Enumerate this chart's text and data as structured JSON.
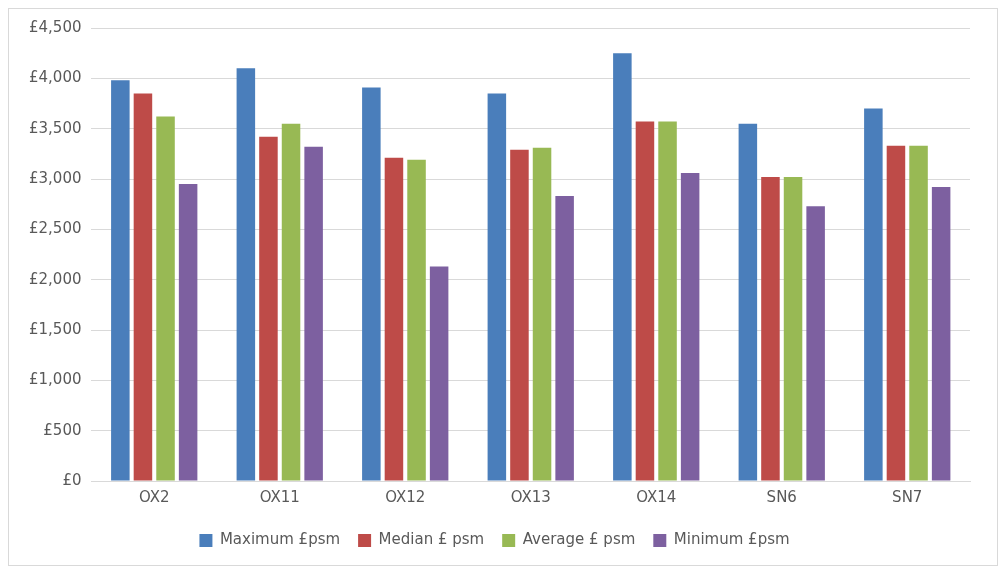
{
  "chart_data": {
    "type": "bar",
    "categories": [
      "OX2",
      "OX11",
      "OX12",
      "OX13",
      "OX14",
      "SN6",
      "SN7"
    ],
    "series": [
      {
        "name": "Maximum £psm",
        "color": "#4a7ebb",
        "values": [
          3980,
          4100,
          3910,
          3850,
          4250,
          3550,
          3700
        ]
      },
      {
        "name": "Median £ psm",
        "color": "#be4b48",
        "values": [
          3850,
          3420,
          3210,
          3290,
          3570,
          3020,
          3330
        ]
      },
      {
        "name": "Average £ psm",
        "color": "#98b954",
        "values": [
          3620,
          3550,
          3190,
          3310,
          3570,
          3020,
          3330
        ]
      },
      {
        "name": "Minimum £psm",
        "color": "#7d60a0",
        "values": [
          2950,
          3320,
          2130,
          2830,
          3060,
          2730,
          2920
        ]
      }
    ],
    "ylim": [
      0,
      4500
    ],
    "yticks": [
      {
        "value": 0,
        "label": "£0"
      },
      {
        "value": 500,
        "label": "£500"
      },
      {
        "value": 1000,
        "label": "£1,000"
      },
      {
        "value": 1500,
        "label": "£1,500"
      },
      {
        "value": 2000,
        "label": "£2,000"
      },
      {
        "value": 2500,
        "label": "£2,500"
      },
      {
        "value": 3000,
        "label": "£3,000"
      },
      {
        "value": 3500,
        "label": "£3,500"
      },
      {
        "value": 4000,
        "label": "£4,000"
      },
      {
        "value": 4500,
        "label": "£4,500"
      }
    ],
    "grid": "y",
    "legend": "bottom"
  }
}
